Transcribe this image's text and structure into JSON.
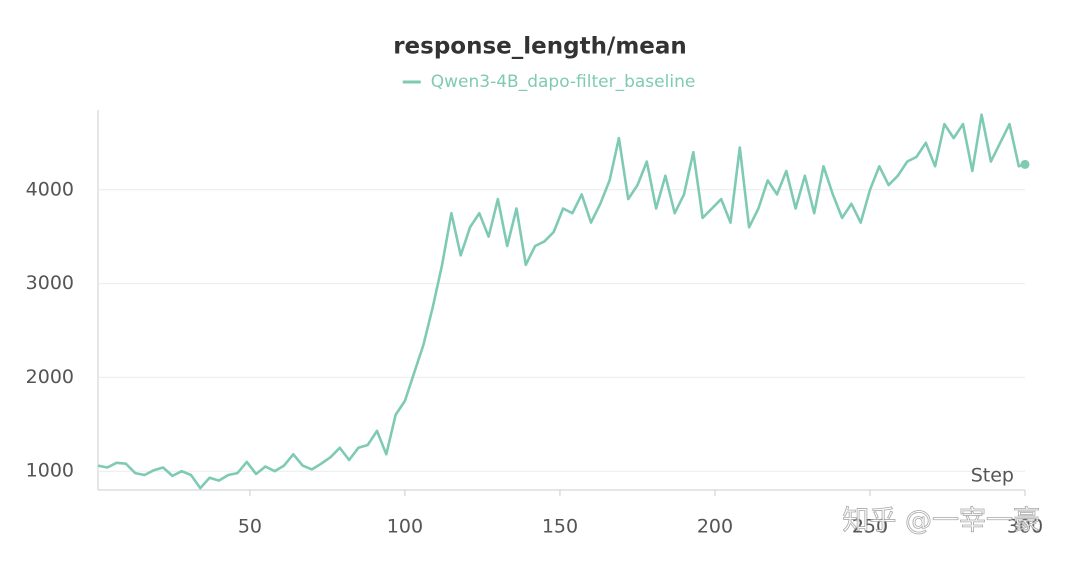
{
  "chart_data": {
    "type": "line",
    "title": "response_length/mean",
    "xlabel": "Step",
    "watermark": "知乎 @一宰一豪",
    "x": [
      1,
      4,
      7,
      10,
      13,
      16,
      19,
      22,
      25,
      28,
      31,
      34,
      37,
      40,
      43,
      46,
      49,
      52,
      55,
      58,
      61,
      64,
      67,
      70,
      73,
      76,
      79,
      82,
      85,
      88,
      91,
      94,
      97,
      100,
      103,
      106,
      109,
      112,
      115,
      118,
      121,
      124,
      127,
      130,
      133,
      136,
      139,
      142,
      145,
      148,
      151,
      154,
      157,
      160,
      163,
      166,
      169,
      172,
      175,
      178,
      181,
      184,
      187,
      190,
      193,
      196,
      199,
      202,
      205,
      208,
      211,
      214,
      217,
      220,
      223,
      226,
      229,
      232,
      235,
      238,
      241,
      244,
      247,
      250,
      253,
      256,
      259,
      262,
      265,
      268,
      271,
      274,
      277,
      280,
      283,
      286,
      289,
      292,
      295,
      298,
      300
    ],
    "series": [
      {
        "name": "Qwen3-4B_dapo-filter_baseline",
        "color": "#7fcab4",
        "values": [
          1060,
          1040,
          1090,
          1080,
          980,
          960,
          1010,
          1040,
          950,
          1000,
          960,
          820,
          930,
          900,
          960,
          980,
          1100,
          970,
          1050,
          1000,
          1060,
          1180,
          1060,
          1020,
          1080,
          1150,
          1250,
          1120,
          1250,
          1280,
          1430,
          1180,
          1600,
          1750,
          2050,
          2350,
          2750,
          3200,
          3750,
          3300,
          3600,
          3750,
          3500,
          3900,
          3400,
          3800,
          3200,
          3400,
          3450,
          3550,
          3800,
          3750,
          3950,
          3650,
          3850,
          4100,
          4550,
          3900,
          4050,
          4300,
          3800,
          4150,
          3750,
          3950,
          4400,
          3700,
          3800,
          3900,
          3650,
          4450,
          3600,
          3800,
          4100,
          3950,
          4200,
          3800,
          4150,
          3750,
          4250,
          3950,
          3700,
          3850,
          3650,
          4000,
          4250,
          4050,
          4150,
          4300,
          4350,
          4500,
          4250,
          4700,
          4550,
          4700,
          4200,
          4800,
          4300,
          4500,
          4700,
          4250,
          4270
        ]
      }
    ],
    "xlim": [
      1,
      300
    ],
    "ylim": [
      800,
      4850
    ],
    "xticks": [
      50,
      100,
      150,
      200,
      250,
      300
    ],
    "yticks": [
      1000,
      2000,
      3000,
      4000
    ],
    "grid": true
  }
}
